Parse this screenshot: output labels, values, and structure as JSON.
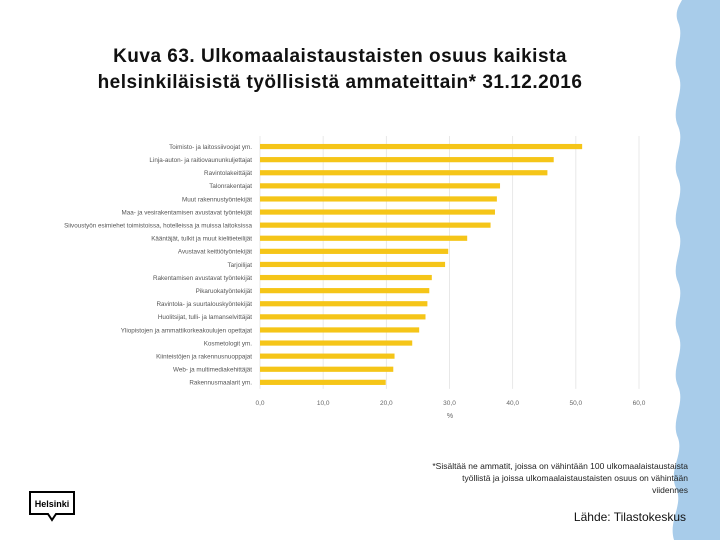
{
  "title_line1": "Kuva 63. Ulkomaalaistaustaisten osuus kaikista",
  "title_line2": "helsinkiläisistä työllisistä ammateittain* 31.12.2016",
  "footnote": "*Sisältää ne ammatit, joissa on vähintään 100 ulkomaalaistaustaista työllistä ja joissa ulkomaalaistaustaisten osuus on vähintään viidennes",
  "source": "Lähde: Tilastokeskus",
  "logo_text": "Helsinki",
  "colors": {
    "bar": "#f5c518",
    "accent": "#a8ccea"
  },
  "chart_data": {
    "type": "bar",
    "orientation": "horizontal",
    "categories": [
      "Toimisto- ja laitossiivoojat ym.",
      "Linja-auton- ja raitiovaununkuljettajat",
      "Ravintolakeittäjät",
      "Talonrakentajat",
      "Muut rakennustyöntekijät",
      "Maa- ja vesirakentamisen avustavat työntekijät",
      "Siivoustyön esimiehet toimistoissa, hotelleissa ja muissa laitoksissa",
      "Kääntäjät, tulkit ja muut kielitieteilijät",
      "Avustavat keittiötyöntekijät",
      "Tarjoilijat",
      "Rakentamisen avustavat työntekijät",
      "Pikaruokatyöntekijät",
      "Ravintola- ja suurtalouskyöntekijät",
      "Huolitsijat, tulli- ja lamanselvittäjät",
      "Yliopistojen ja ammattikorkeakoulujen opettajat",
      "Kosmetologit ym.",
      "Kiinteistöjen ja rakennusnuoppajat",
      "Web- ja multimediakehittäjät",
      "Rakennusmaalarit ym."
    ],
    "values": [
      51.0,
      46.5,
      45.5,
      38.0,
      37.5,
      37.2,
      36.5,
      32.8,
      29.8,
      29.3,
      27.2,
      26.8,
      26.5,
      26.2,
      25.2,
      24.1,
      21.3,
      21.1,
      19.9
    ],
    "xlim": [
      0,
      60
    ],
    "xticks": [
      "0,0",
      "10,0",
      "20,0",
      "30,0",
      "40,0",
      "50,0",
      "60,0"
    ],
    "xlabel": "%",
    "grid": true
  }
}
